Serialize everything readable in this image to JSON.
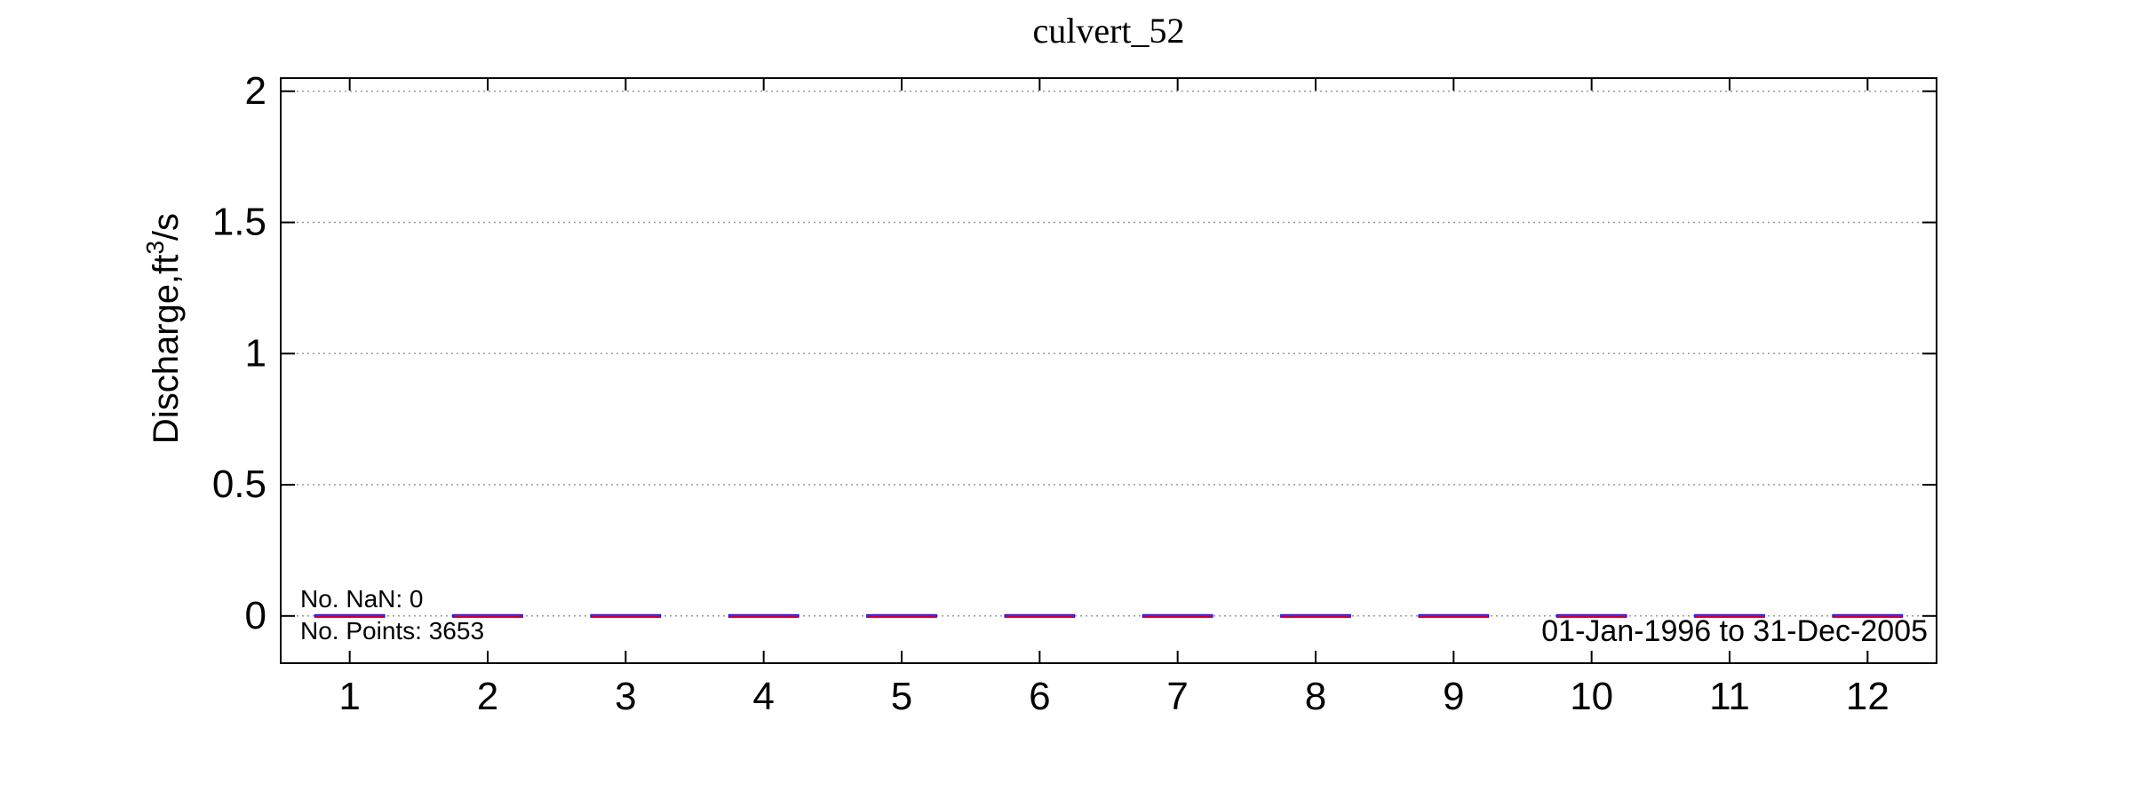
{
  "chart_data": {
    "type": "box",
    "title": "culvert_52",
    "ylabel": {
      "base": "Discharge,ft",
      "superscript": "3",
      "suffix": "/s"
    },
    "xlabel": "",
    "categories": [
      "1",
      "2",
      "3",
      "4",
      "5",
      "6",
      "7",
      "8",
      "9",
      "10",
      "11",
      "12"
    ],
    "ylim": [
      -0.18,
      2.05
    ],
    "yticks": [
      0,
      0.5,
      1,
      1.5,
      2
    ],
    "ytick_labels": [
      "0",
      "0.5",
      "1",
      "1.5",
      "2"
    ],
    "grid": "horizontal-dotted",
    "series": [
      {
        "values": [
          {
            "median": 0,
            "q1": 0,
            "q3": 0
          },
          {
            "median": 0,
            "q1": 0,
            "q3": 0
          },
          {
            "median": 0,
            "q1": 0,
            "q3": 0
          },
          {
            "median": 0,
            "q1": 0,
            "q3": 0
          },
          {
            "median": 0,
            "q1": 0,
            "q3": 0
          },
          {
            "median": 0,
            "q1": 0,
            "q3": 0
          },
          {
            "median": 0,
            "q1": 0,
            "q3": 0
          },
          {
            "median": 0,
            "q1": 0,
            "q3": 0
          },
          {
            "median": 0,
            "q1": 0,
            "q3": 0
          },
          {
            "median": 0,
            "q1": 0,
            "q3": 0
          },
          {
            "median": 0,
            "q1": 0,
            "q3": 0
          },
          {
            "median": 0,
            "q1": 0,
            "q3": 0
          }
        ]
      }
    ],
    "colors": {
      "box": "#0000ff",
      "median": "#ff0000",
      "axis": "#000000",
      "grid": "#9a9a9a"
    },
    "annotations": {
      "nan_count": "No. NaN: 0",
      "point_count": "No. Points: 3653",
      "date_range": "01-Jan-1996 to 31-Dec-2005"
    }
  }
}
